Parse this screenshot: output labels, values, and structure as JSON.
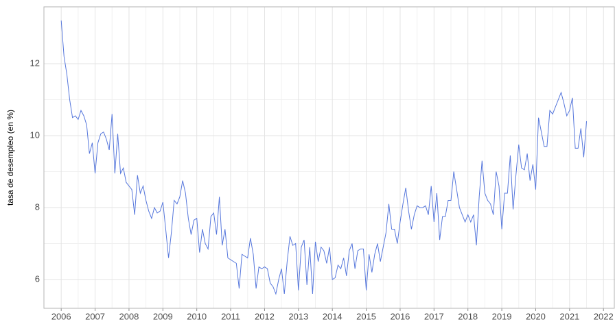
{
  "chart_data": {
    "type": "line",
    "y_label": "tasa de desempleo (en %)",
    "x": [
      2006,
      2006.083,
      2006.167,
      2006.25,
      2006.333,
      2006.417,
      2006.5,
      2006.583,
      2006.667,
      2006.75,
      2006.833,
      2006.917,
      2007,
      2007.083,
      2007.167,
      2007.25,
      2007.333,
      2007.417,
      2007.5,
      2007.583,
      2007.667,
      2007.75,
      2007.833,
      2007.917,
      2008,
      2008.083,
      2008.167,
      2008.25,
      2008.333,
      2008.417,
      2008.5,
      2008.583,
      2008.667,
      2008.75,
      2008.833,
      2008.917,
      2009,
      2009.083,
      2009.167,
      2009.25,
      2009.333,
      2009.417,
      2009.5,
      2009.583,
      2009.667,
      2009.75,
      2009.833,
      2009.917,
      2010,
      2010.083,
      2010.167,
      2010.25,
      2010.333,
      2010.417,
      2010.5,
      2010.583,
      2010.667,
      2010.75,
      2010.833,
      2010.917,
      2011,
      2011.083,
      2011.167,
      2011.25,
      2011.333,
      2011.417,
      2011.5,
      2011.583,
      2011.667,
      2011.75,
      2011.833,
      2011.917,
      2012,
      2012.083,
      2012.167,
      2012.25,
      2012.333,
      2012.417,
      2012.5,
      2012.583,
      2012.667,
      2012.75,
      2012.833,
      2012.917,
      2013,
      2013.083,
      2013.167,
      2013.25,
      2013.333,
      2013.417,
      2013.5,
      2013.583,
      2013.667,
      2013.75,
      2013.833,
      2013.917,
      2014,
      2014.083,
      2014.167,
      2014.25,
      2014.333,
      2014.417,
      2014.5,
      2014.583,
      2014.667,
      2014.75,
      2014.833,
      2014.917,
      2015,
      2015.083,
      2015.167,
      2015.25,
      2015.333,
      2015.417,
      2015.5,
      2015.583,
      2015.667,
      2015.75,
      2015.833,
      2015.917,
      2016,
      2016.083,
      2016.167,
      2016.25,
      2016.333,
      2016.417,
      2016.5,
      2016.583,
      2016.667,
      2016.75,
      2016.833,
      2016.917,
      2017,
      2017.083,
      2017.167,
      2017.25,
      2017.333,
      2017.417,
      2017.5,
      2017.583,
      2017.667,
      2017.75,
      2017.833,
      2017.917,
      2018,
      2018.083,
      2018.167,
      2018.25,
      2018.333,
      2018.417,
      2018.5,
      2018.583,
      2018.667,
      2018.75,
      2018.833,
      2018.917,
      2019,
      2019.083,
      2019.167,
      2019.25,
      2019.333,
      2019.417,
      2019.5,
      2019.583,
      2019.667,
      2019.75,
      2019.833,
      2019.917,
      2020,
      2020.083,
      2020.167,
      2020.25,
      2020.333,
      2020.417,
      2020.5,
      2020.583,
      2020.667,
      2020.75,
      2020.833,
      2020.917,
      2021,
      2021.083,
      2021.167,
      2021.25,
      2021.333,
      2021.417,
      2021.5
    ],
    "series": [
      {
        "color": "#5677dc",
        "values": [
          13.2,
          12.2,
          11.7,
          11.0,
          10.5,
          10.55,
          10.45,
          10.7,
          10.55,
          10.3,
          9.5,
          9.8,
          8.95,
          9.8,
          10.05,
          10.1,
          9.9,
          9.6,
          10.6,
          8.95,
          10.05,
          8.95,
          9.1,
          8.7,
          8.6,
          8.5,
          7.8,
          8.9,
          8.4,
          8.6,
          8.2,
          7.9,
          7.7,
          8.0,
          7.85,
          7.9,
          8.15,
          7.4,
          6.6,
          7.3,
          8.2,
          8.1,
          8.3,
          8.75,
          8.4,
          7.7,
          7.25,
          7.65,
          7.7,
          6.75,
          7.4,
          7.0,
          6.85,
          7.75,
          7.85,
          7.25,
          8.3,
          6.95,
          7.4,
          6.6,
          6.55,
          6.5,
          6.45,
          5.75,
          6.7,
          6.65,
          6.6,
          7.15,
          6.7,
          5.75,
          6.35,
          6.3,
          6.35,
          6.3,
          5.9,
          5.8,
          5.6,
          6.0,
          6.3,
          5.6,
          6.5,
          7.2,
          6.95,
          7.0,
          5.7,
          6.9,
          7.1,
          5.85,
          6.9,
          5.6,
          7.05,
          6.5,
          6.9,
          6.8,
          6.45,
          6.9,
          6.0,
          6.05,
          6.4,
          6.3,
          6.6,
          6.1,
          6.8,
          7.0,
          6.3,
          6.8,
          6.85,
          6.85,
          5.7,
          6.7,
          6.2,
          6.7,
          7.0,
          6.5,
          6.9,
          7.3,
          8.1,
          7.4,
          7.4,
          7.0,
          7.6,
          8.1,
          8.55,
          7.9,
          7.4,
          7.8,
          8.05,
          8.0,
          8.0,
          8.05,
          7.8,
          8.6,
          7.6,
          8.4,
          7.1,
          7.75,
          7.75,
          8.2,
          8.2,
          9.0,
          8.5,
          8.0,
          7.8,
          7.6,
          7.8,
          7.6,
          7.8,
          6.95,
          8.3,
          9.3,
          8.4,
          8.2,
          8.1,
          7.8,
          9.0,
          8.6,
          7.4,
          8.4,
          8.4,
          9.45,
          7.95,
          8.9,
          9.75,
          9.1,
          9.05,
          9.5,
          8.75,
          9.2,
          8.5,
          10.5,
          10.1,
          9.7,
          9.7,
          10.7,
          10.6,
          10.8,
          11.0,
          11.2,
          10.9,
          10.55,
          10.7,
          11.05,
          9.65,
          9.65,
          10.2,
          9.4,
          10.4
        ]
      }
    ],
    "xlim": [
      2005.49,
      2022.34
    ],
    "xticks": [
      2006,
      2007,
      2008,
      2009,
      2010,
      2011,
      2012,
      2013,
      2014,
      2015,
      2016,
      2017,
      2018,
      2019,
      2020,
      2021,
      2022
    ],
    "ylim": [
      5.2,
      13.58
    ],
    "yticks": [
      6,
      8,
      10,
      12
    ],
    "grid": true
  }
}
